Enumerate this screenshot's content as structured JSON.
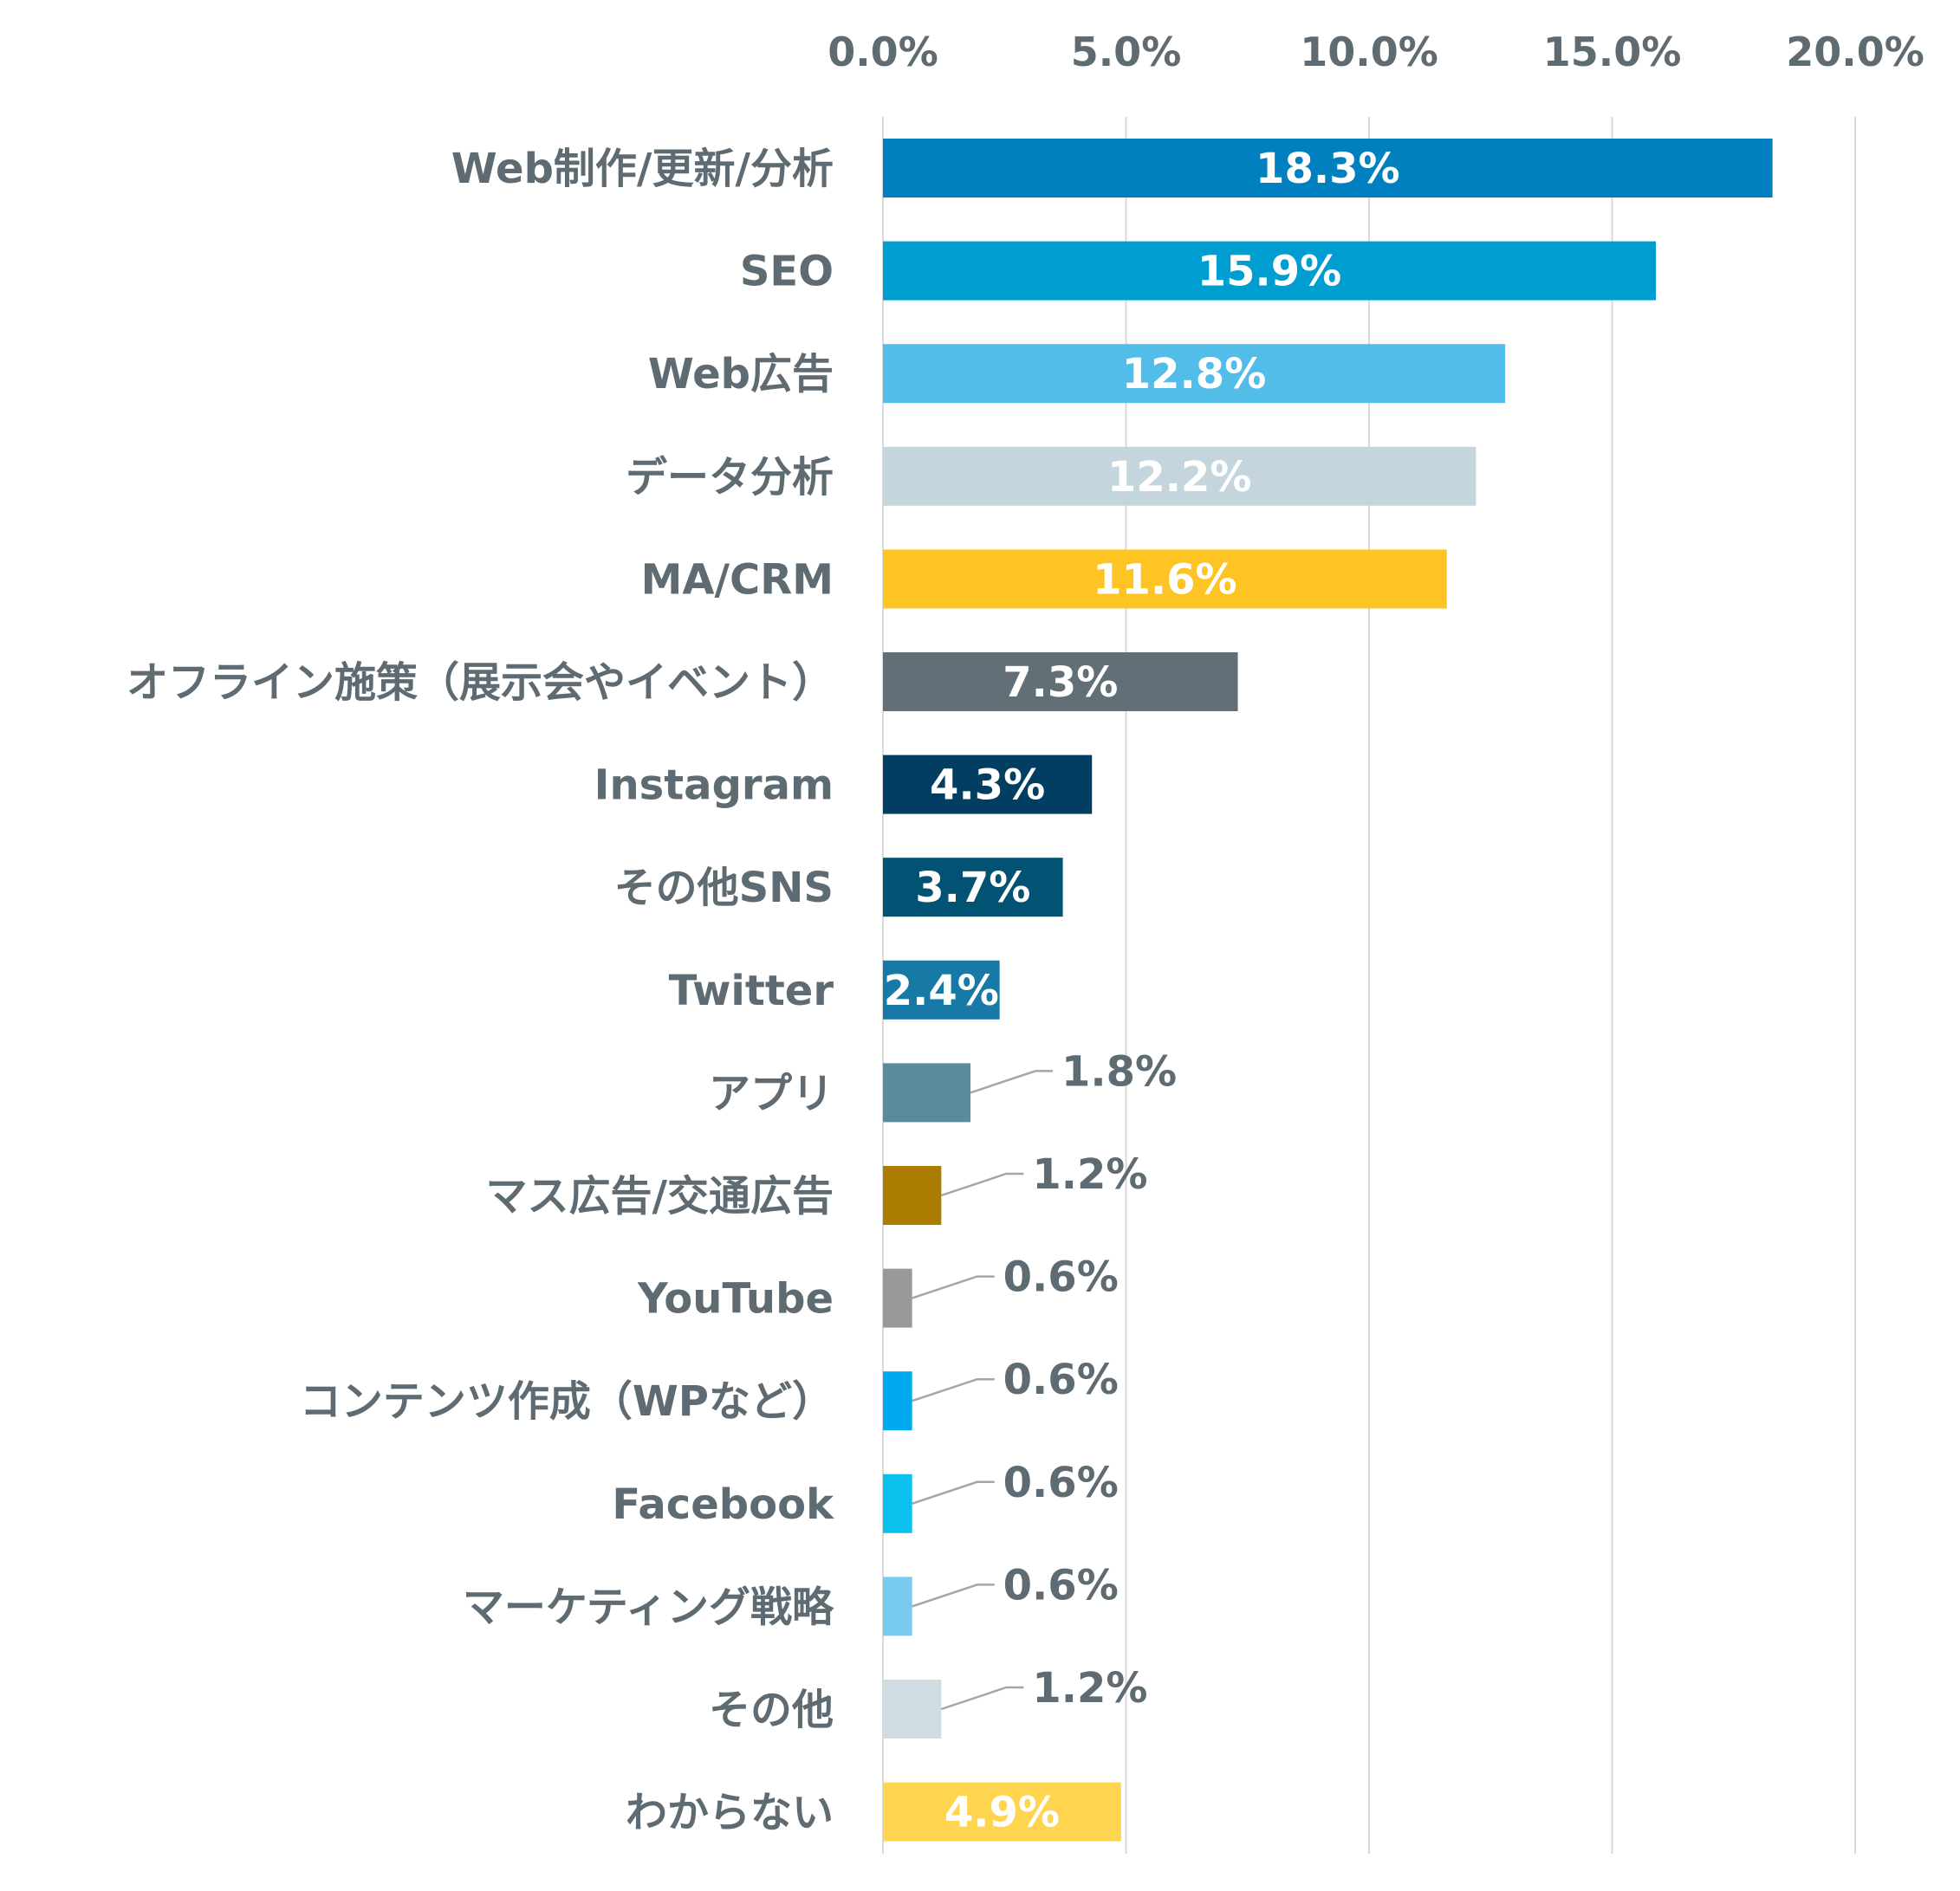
{
  "chart_data": {
    "type": "bar",
    "orientation": "horizontal",
    "xlim": [
      0,
      20
    ],
    "ticks": [
      "0.0%",
      "5.0%",
      "10.0%",
      "15.0%",
      "20.0%"
    ],
    "axis_position": "top",
    "grid": true,
    "bars": [
      {
        "category": "Web制作/更新/分析",
        "value": 18.3,
        "label": "18.3%",
        "color": "#0080be",
        "label_position": "inside"
      },
      {
        "category": "SEO",
        "value": 15.9,
        "label": "15.9%",
        "color": "#009ed0",
        "label_position": "inside"
      },
      {
        "category": "Web広告",
        "value": 12.8,
        "label": "12.8%",
        "color": "#52bde8",
        "label_position": "inside"
      },
      {
        "category": "データ分析",
        "value": 12.2,
        "label": "12.2%",
        "color": "#c4d5dd",
        "label_position": "inside"
      },
      {
        "category": "MA/CRM",
        "value": 11.6,
        "label": "11.6%",
        "color": "#fdc423",
        "label_position": "inside"
      },
      {
        "category": "オフライン施策（展示会やイベント）",
        "value": 7.3,
        "label": "7.3%",
        "color": "#636f76",
        "label_position": "inside"
      },
      {
        "category": "Instagram",
        "value": 4.3,
        "label": "4.3%",
        "color": "#023d62",
        "label_position": "inside"
      },
      {
        "category": "その他SNS",
        "value": 3.7,
        "label": "3.7%",
        "color": "#025373",
        "label_position": "inside"
      },
      {
        "category": "Twitter",
        "value": 2.4,
        "label": "2.4%",
        "color": "#1679a6",
        "label_position": "inside"
      },
      {
        "category": "アプリ",
        "value": 1.8,
        "label": "1.8%",
        "color": "#5a8a9c",
        "label_position": "outside"
      },
      {
        "category": "マス広告/交通広告",
        "value": 1.2,
        "label": "1.2%",
        "color": "#ab7c00",
        "label_position": "outside"
      },
      {
        "category": "YouTube",
        "value": 0.6,
        "label": "0.6%",
        "color": "#999999",
        "label_position": "outside"
      },
      {
        "category": "コンテンツ作成（WPなど）",
        "value": 0.6,
        "label": "0.6%",
        "color": "#00a9ee",
        "label_position": "outside"
      },
      {
        "category": "Facebook",
        "value": 0.6,
        "label": "0.6%",
        "color": "#0cc0ee",
        "label_position": "outside"
      },
      {
        "category": "マーケティング戦略",
        "value": 0.6,
        "label": "0.6%",
        "color": "#78cbee",
        "label_position": "outside"
      },
      {
        "category": "その他",
        "value": 1.2,
        "label": "1.2%",
        "color": "#cfdde3",
        "label_position": "outside"
      },
      {
        "category": "わからない",
        "value": 4.9,
        "label": "4.9%",
        "color": "#ffd54f",
        "label_position": "inside"
      }
    ]
  }
}
